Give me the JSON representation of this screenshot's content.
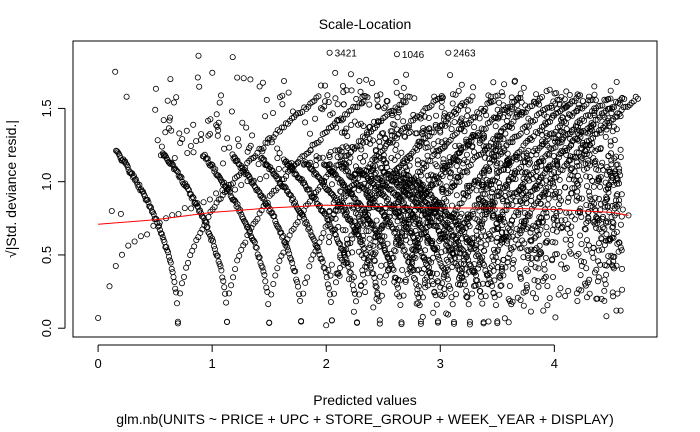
{
  "chart_data": {
    "type": "scatter",
    "title": "Scale-Location",
    "xlabel": "Predicted values",
    "subtitle": "glm.nb(UNITS ~ PRICE + UPC + STORE_GROUP + WEEK_YEAR + DISPLAY)",
    "ylabel": "√|Std. deviance resid.|",
    "xlim": [
      -0.22,
      4.9
    ],
    "ylim": [
      -0.06,
      1.96
    ],
    "x_ticks": [
      0,
      1,
      2,
      3,
      4
    ],
    "y_ticks": [
      0.0,
      0.5,
      1.0,
      1.5
    ],
    "grid": false,
    "marker": "open-circle",
    "smooth_line": {
      "name": "",
      "color": "#ff0000",
      "x": [
        0.0,
        0.5,
        1.0,
        1.5,
        2.0,
        2.5,
        3.0,
        3.5,
        4.0,
        4.5,
        4.65
      ],
      "y": [
        0.71,
        0.74,
        0.79,
        0.82,
        0.84,
        0.83,
        0.82,
        0.82,
        0.81,
        0.79,
        0.77
      ]
    },
    "labeled_points": [
      {
        "label": "3421",
        "x": 2.03,
        "y": 1.88
      },
      {
        "label": "1046",
        "x": 2.62,
        "y": 1.87
      },
      {
        "label": "2463",
        "x": 3.07,
        "y": 1.88
      }
    ],
    "points": {
      "note_count": 2400,
      "isolated": [
        [
          0.0,
          0.07
        ],
        [
          0.15,
          1.75
        ],
        [
          0.25,
          1.58
        ],
        [
          0.12,
          0.8
        ],
        [
          0.2,
          0.78
        ],
        [
          0.88,
          1.86
        ],
        [
          1.18,
          1.85
        ],
        [
          4.6,
          0.81
        ],
        [
          4.65,
          0.77
        ],
        [
          4.45,
          0.3
        ],
        [
          4.55,
          0.83
        ],
        [
          4.25,
          1.55
        ],
        [
          4.35,
          1.65
        ],
        [
          3.6,
          0.04
        ],
        [
          2.0,
          0.02
        ]
      ],
      "curve_family": {
        "centers": [
          0.7,
          1.13,
          1.5,
          1.78,
          2.05,
          2.27,
          2.47,
          2.66,
          2.83,
          2.98,
          3.12,
          3.26,
          3.38,
          3.5
        ],
        "peak": 1.88,
        "floor": 0.04
      },
      "cloud": {
        "x_range": [
          2.0,
          4.6
        ],
        "y_range": [
          0.02,
          1.75
        ]
      }
    }
  }
}
